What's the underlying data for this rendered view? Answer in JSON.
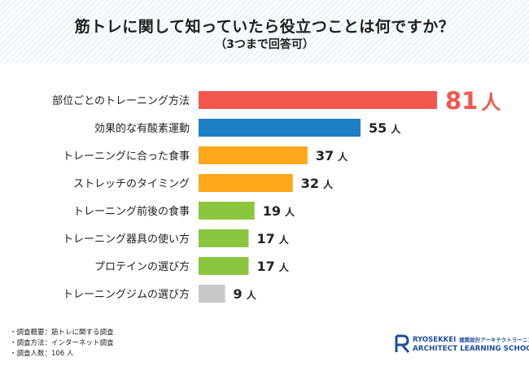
{
  "header": {
    "title": "筋トレに関して知っていたら役立つことは何ですか？",
    "subtitle": "（3つまで回答可）"
  },
  "chart_data": {
    "type": "bar",
    "orientation": "horizontal",
    "title": "筋トレに関して知っていたら役立つことは何ですか？",
    "subtitle": "（3つまで回答可）",
    "unit": "人",
    "categories": [
      "部位ごとのトレーニング方法",
      "効果的な有酸素運動",
      "トレーニングに合った食事",
      "ストレッチのタイミング",
      "トレーニング前後の食事",
      "トレーニング器具の使い方",
      "プロテインの選び方",
      "トレーニングジムの選び方"
    ],
    "values": [
      81,
      55,
      37,
      32,
      19,
      17,
      17,
      9
    ],
    "colors": [
      "#f2574f",
      "#1f7fc4",
      "#ffa81a",
      "#ffa81a",
      "#8cc63f",
      "#8cc63f",
      "#8cc63f",
      "#c8c8c8"
    ],
    "highlight_color": "#f2574f",
    "xlim": [
      0,
      81
    ],
    "grid": false,
    "legend": "none"
  },
  "footnotes": [
    "・調査概要：筋トレに関する調査",
    "・調査方法：インターネット調査",
    "・調査人数：106 人"
  ],
  "logo": {
    "brand": "RYOSEKKEI",
    "brand_jp": "建築設計アーキテクトラーニング",
    "school": "ARCHITECT LEARNING SCHOOL",
    "color": "#1f4fa0"
  }
}
